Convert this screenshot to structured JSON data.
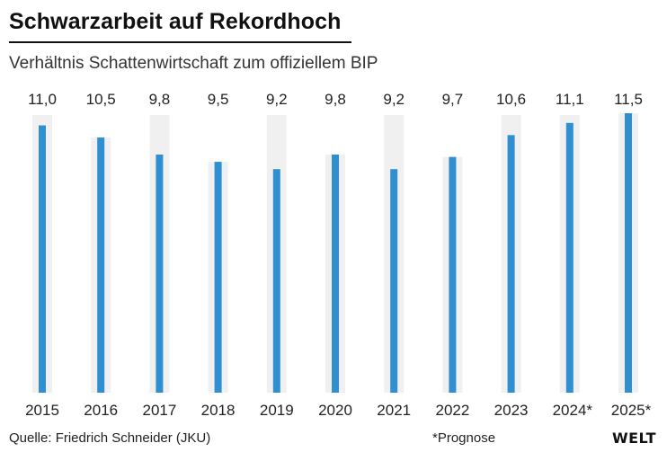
{
  "title": "Schwarzarbeit auf Rekordhoch",
  "subtitle": "Verhältnis Schattenwirtschaft zum offiziellem BIP",
  "source": "Quelle: Friedrich Schneider (JKU)",
  "note": "*Prognose",
  "logo": "WELT",
  "colors": {
    "bar": "#2f8fd0",
    "column_background": "#f0f0f0",
    "text": "#222222"
  },
  "chart_data": {
    "type": "bar",
    "title": "Schwarzarbeit auf Rekordhoch",
    "subtitle": "Verhältnis Schattenwirtschaft zum offiziellem BIP",
    "xlabel": "",
    "ylabel": "",
    "ylim": [
      0,
      11.5
    ],
    "grid": false,
    "categories": [
      "2015",
      "2016",
      "2017",
      "2018",
      "2019",
      "2020",
      "2021",
      "2022",
      "2023",
      "2024*",
      "2025*"
    ],
    "values": [
      11.0,
      10.5,
      9.8,
      9.5,
      9.2,
      9.8,
      9.2,
      9.7,
      10.6,
      11.1,
      11.5
    ],
    "value_labels": [
      "11,0",
      "10,5",
      "9,8",
      "9,5",
      "9,2",
      "9,8",
      "9,2",
      "9,7",
      "10,6",
      "11,1",
      "11,5"
    ]
  }
}
